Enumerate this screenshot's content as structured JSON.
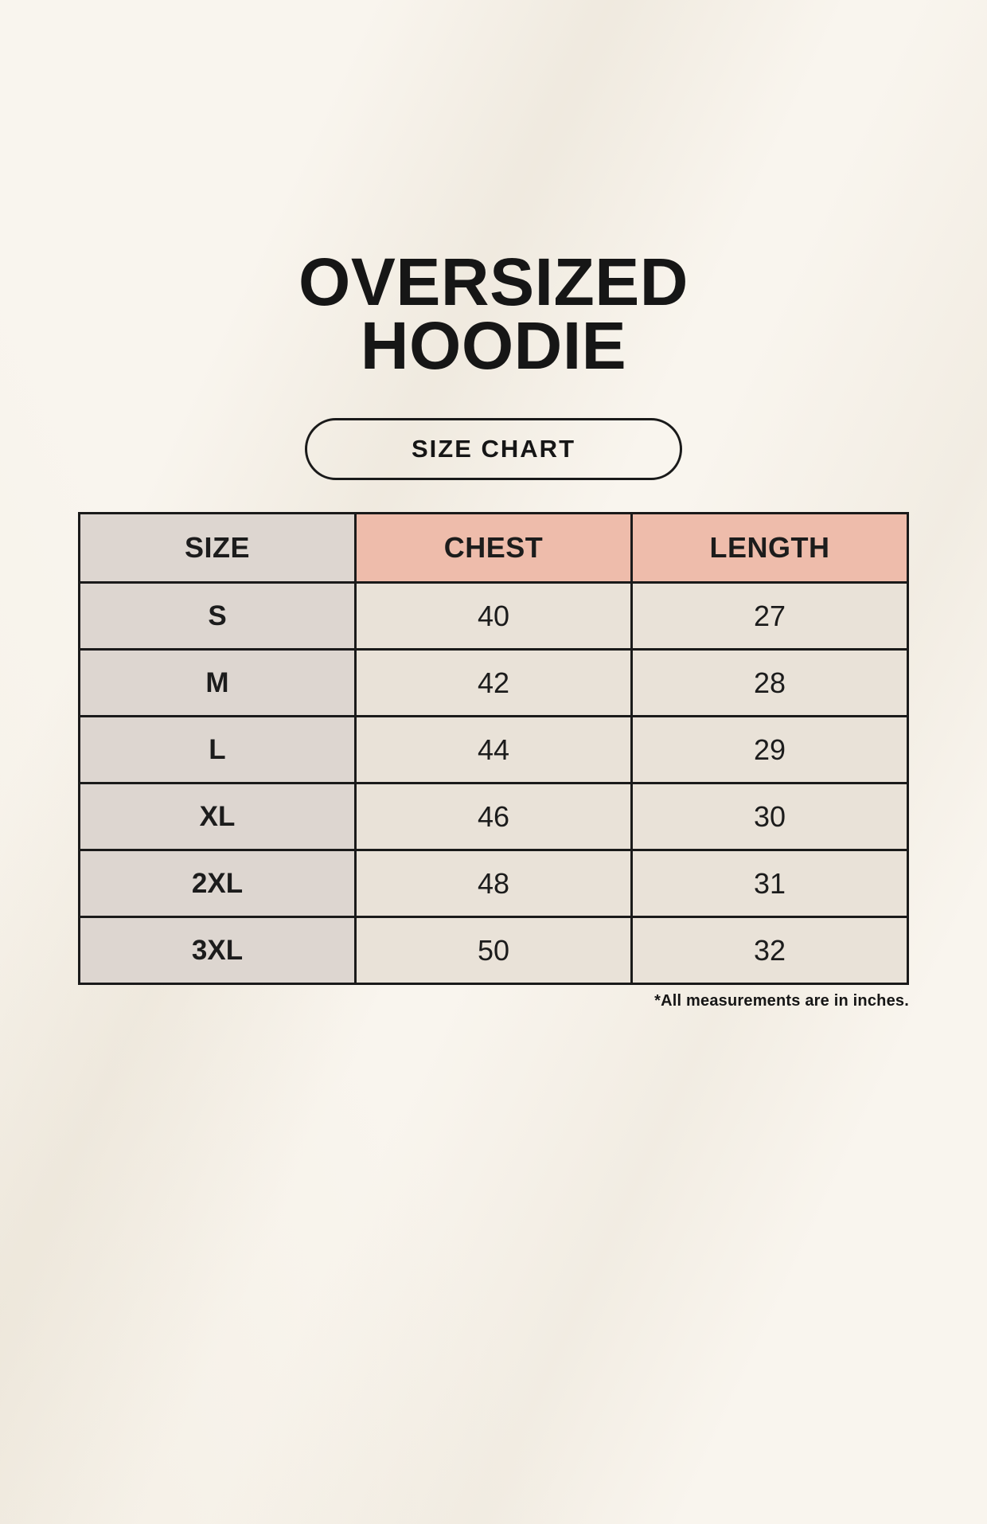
{
  "header": {
    "title_line1": "OVERSIZED",
    "title_line2": "HOODIE",
    "size_chart_button_label": "SIZE CHART"
  },
  "chart_data": {
    "type": "table",
    "title": "OVERSIZED HOODIE SIZE CHART",
    "columns": [
      "SIZE",
      "CHEST",
      "LENGTH"
    ],
    "rows": [
      [
        "S",
        "40",
        "27"
      ],
      [
        "M",
        "42",
        "28"
      ],
      [
        "L",
        "44",
        "29"
      ],
      [
        "XL",
        "46",
        "30"
      ],
      [
        "2XL",
        "48",
        "31"
      ],
      [
        "3XL",
        "50",
        "32"
      ]
    ],
    "footnote": "*All measurements are in inches.",
    "units": "inches"
  },
  "colors": {
    "background": "#f9f5ee",
    "pink": "#eebcab",
    "gray": "#ddd6d0",
    "cream": "#e9e2d8",
    "border": "#1a1a1a",
    "text": "#1c1c1c"
  }
}
